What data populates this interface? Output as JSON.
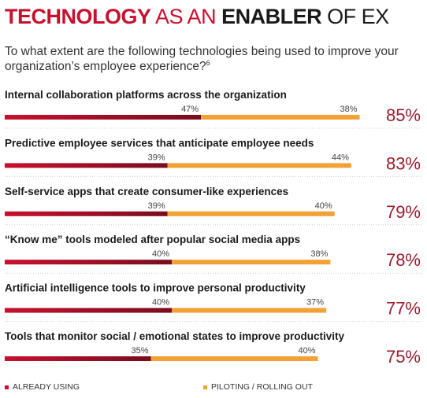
{
  "title": {
    "part1": "TECHNOLOGY",
    "part2": " AS AN ",
    "part3": "ENABLER",
    "part4": " OF EX"
  },
  "subtitle": {
    "text": "To what extent are the following technologies being used to improve your organization’s employee experience?",
    "footnote": "6"
  },
  "colors": {
    "title_accent": "#c8102e",
    "title_dark": "#1a1a1a",
    "already_using": "#c8102e",
    "already_using_dark": "#7a0c1e",
    "piloting": "#f2a134",
    "total_text": "#9b1b30",
    "text": "#1a1a1a"
  },
  "chart_data": {
    "type": "bar",
    "stacked": true,
    "orientation": "horizontal",
    "categories": [
      "Internal collaboration platforms across the organization",
      "Predictive employee services that anticipate employee needs",
      "Self-service apps that create consumer-like experiences",
      "“Know me” tools modeled after popular social media apps",
      "Artificial intelligence tools to improve personal productivity",
      "Tools that monitor social / emotional states to improve productivity"
    ],
    "series": [
      {
        "name": "ALREADY USING",
        "values": [
          47,
          39,
          39,
          40,
          40,
          35
        ]
      },
      {
        "name": "PILOTING / ROLLING OUT",
        "values": [
          38,
          44,
          40,
          38,
          37,
          40
        ]
      }
    ],
    "totals": [
      "85%",
      "83%",
      "79%",
      "78%",
      "77%",
      "75%"
    ],
    "value_suffix": "%",
    "xlim": [
      0,
      85
    ],
    "legend_position": "bottom"
  }
}
